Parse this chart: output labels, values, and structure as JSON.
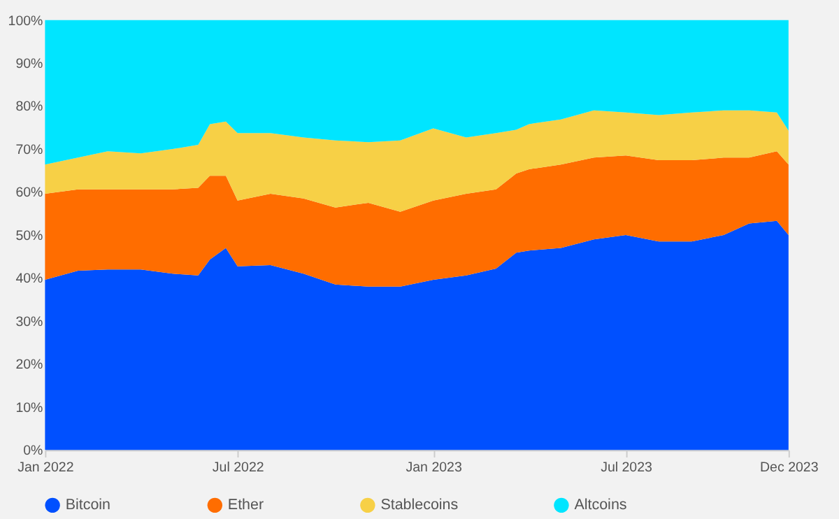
{
  "chart_data": {
    "type": "area",
    "stacked": true,
    "x": [
      "2022-01-01",
      "2022-02-01",
      "2022-03-01",
      "2022-04-01",
      "2022-05-01",
      "2022-05-25",
      "2022-06-05",
      "2022-06-20",
      "2022-07-01",
      "2022-08-01",
      "2022-09-01",
      "2022-10-01",
      "2022-11-01",
      "2022-12-01",
      "2023-01-01",
      "2023-02-01",
      "2023-03-01",
      "2023-03-20",
      "2023-04-01",
      "2023-05-01",
      "2023-06-01",
      "2023-07-01",
      "2023-08-01",
      "2023-09-01",
      "2023-10-01",
      "2023-10-25",
      "2023-11-20",
      "2023-12-01"
    ],
    "series": [
      {
        "name": "Bitcoin",
        "color": "#0050ff",
        "values": [
          39.6,
          41.7,
          42.0,
          42.0,
          41.0,
          40.6,
          44.3,
          47.0,
          42.7,
          43.0,
          41.0,
          38.5,
          38.0,
          38.0,
          39.6,
          40.6,
          42.2,
          45.9,
          46.4,
          47.0,
          49.0,
          50.0,
          48.5,
          48.5,
          50.0,
          52.7,
          53.3,
          50.0
        ]
      },
      {
        "name": "Ether",
        "color": "#ff6d00",
        "values": [
          20.0,
          18.9,
          18.6,
          18.6,
          19.6,
          20.4,
          19.5,
          16.8,
          15.3,
          16.6,
          17.5,
          17.9,
          19.5,
          17.4,
          18.4,
          19.0,
          18.4,
          18.4,
          18.9,
          19.4,
          19.0,
          18.5,
          18.9,
          18.9,
          18.0,
          15.3,
          16.2,
          16.4
        ]
      },
      {
        "name": "Stablecoins",
        "color": "#f7d046",
        "values": [
          6.8,
          7.4,
          8.9,
          8.4,
          9.4,
          10.0,
          12.0,
          12.6,
          15.7,
          14.1,
          14.2,
          15.6,
          14.1,
          16.6,
          16.8,
          13.1,
          13.1,
          10.2,
          10.5,
          10.5,
          11.0,
          10.0,
          10.5,
          11.1,
          11.0,
          11.0,
          9.0,
          7.9
        ]
      },
      {
        "name": "Altcoins",
        "color": "#00e5ff",
        "values": [
          33.6,
          32.0,
          30.5,
          31.0,
          30.0,
          29.0,
          24.2,
          23.6,
          26.3,
          26.3,
          27.3,
          28.0,
          28.4,
          28.0,
          25.2,
          27.3,
          26.3,
          25.5,
          24.2,
          23.1,
          21.0,
          21.5,
          22.1,
          21.5,
          21.0,
          21.0,
          21.5,
          25.7
        ]
      }
    ],
    "xlim": [
      "2022-01-01",
      "2023-12-01"
    ],
    "xticks": [
      {
        "value": "2022-01-01",
        "label": "Jan 2022"
      },
      {
        "value": "2022-07-01",
        "label": "Jul 2022"
      },
      {
        "value": "2023-01-01",
        "label": "Jan 2023"
      },
      {
        "value": "2023-07-01",
        "label": "Jul 2023"
      },
      {
        "value": "2023-12-01",
        "label": "Dec 2023"
      }
    ],
    "ylim": [
      0,
      100
    ],
    "yticks": [
      {
        "value": 0,
        "label": "0%"
      },
      {
        "value": 10,
        "label": "10%"
      },
      {
        "value": 20,
        "label": "20%"
      },
      {
        "value": 30,
        "label": "30%"
      },
      {
        "value": 40,
        "label": "40%"
      },
      {
        "value": 50,
        "label": "50%"
      },
      {
        "value": 60,
        "label": "60%"
      },
      {
        "value": 70,
        "label": "70%"
      },
      {
        "value": 80,
        "label": "80%"
      },
      {
        "value": 90,
        "label": "90%"
      },
      {
        "value": 100,
        "label": "100%"
      }
    ],
    "grid": false,
    "legend": "bottom"
  }
}
